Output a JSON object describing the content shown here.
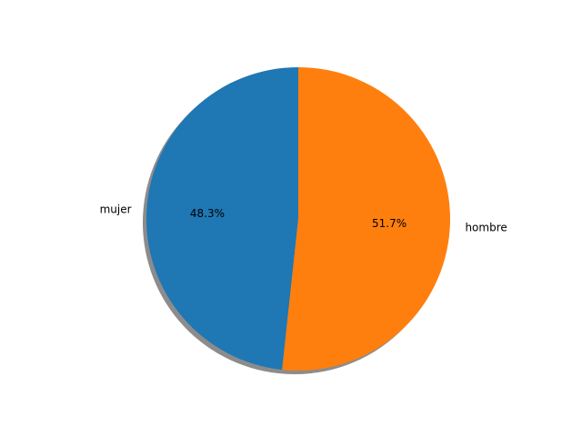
{
  "chart_data": {
    "type": "pie",
    "title": "",
    "labels": [
      "mujer",
      "hombre"
    ],
    "values": [
      48.3,
      51.7
    ],
    "pct_labels": [
      "48.3%",
      "51.7%"
    ],
    "colors": [
      "#1f77b4",
      "#ff7f0e"
    ],
    "start_angle_deg": 90,
    "direction": "counterclockwise",
    "shadow": true,
    "legend": "none"
  }
}
